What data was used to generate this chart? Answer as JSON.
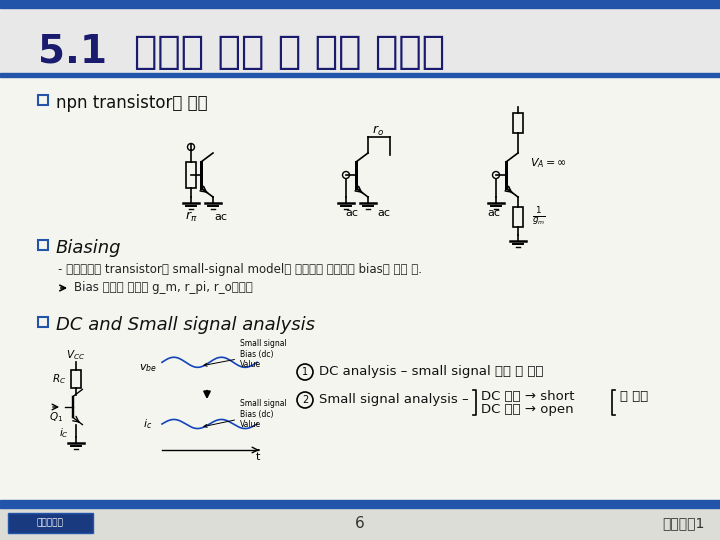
{
  "bg_color": "#f5f5f0",
  "title": "5.1  증폭기 설계 시 고려 사항들",
  "title_color": "#1a1a6e",
  "title_fontsize": 28,
  "accent_color": "#2255aa",
  "line_color": "#2255aa",
  "bullet_color": "#2255aa",
  "bullet1_latin": "npn transistor",
  "bullet1_korean": "의 저항",
  "bullet2": "Biasing",
  "bullet2_sub1_latin": "- 증폭기에서 transistor를 small-signal model로 해석하기 위해서는 bias를 헤아 함.",
  "bullet2_sub2_latin": "Bias 조건에 의하여 g_m, r_pi, r_o결정됨",
  "bullet3": "DC and Small signal analysis",
  "dc_text1_latin": "DC analysis – small signal ",
  "dc_text1_korean": "무시 후 분석",
  "dc_text2_latin": "Small signal analysis –",
  "dc_text2_k1": "DC 전압 → short",
  "dc_text2_k2": "DC 전류 → open",
  "dc_text2_suffix": "후 분석",
  "footer_page": "6",
  "footer_right": "전자회로1",
  "top_stripe_color": "#2255aa",
  "bottom_stripe_color": "#2255aa"
}
